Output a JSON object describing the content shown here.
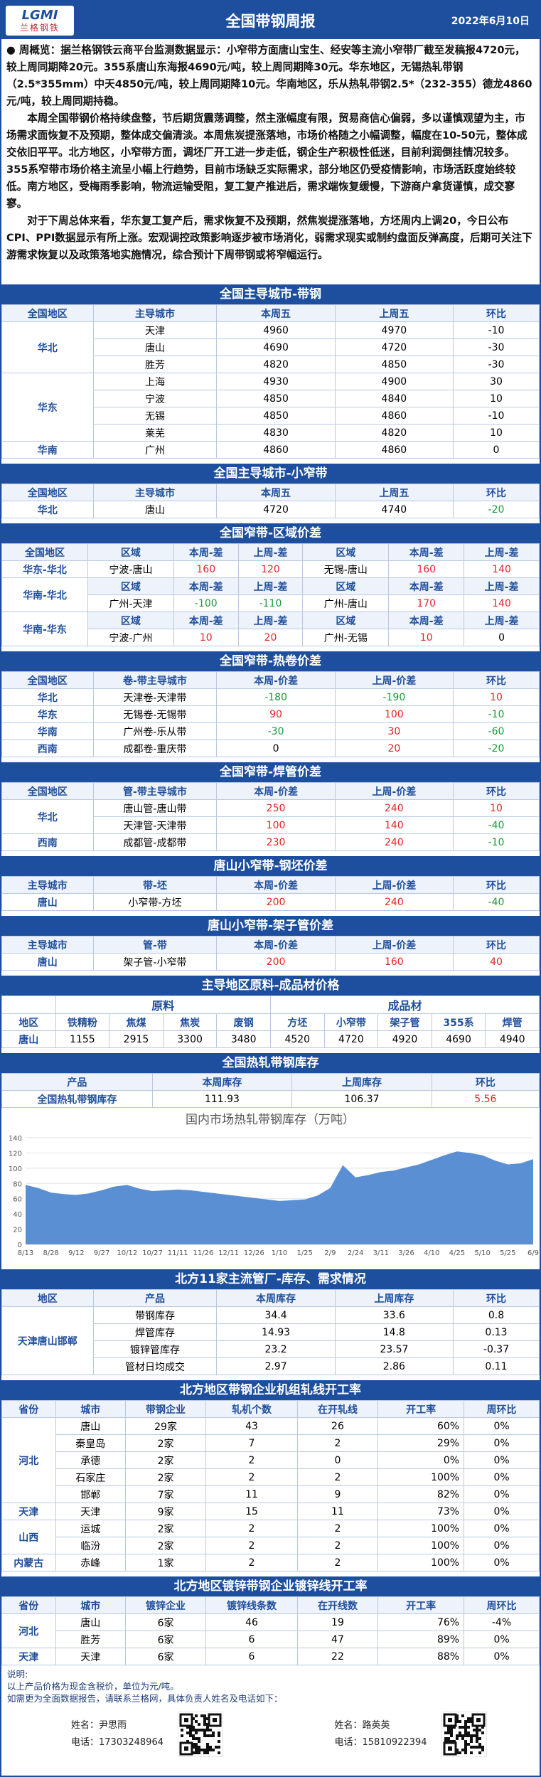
{
  "header": {
    "logo": "LGMI",
    "logo_sub": "兰格钢铁",
    "title": "全国带钢周报",
    "date": "2022年6月10日"
  },
  "summary": {
    "paragraphs": [
      "● 周概览：据兰格钢铁云商平台监测数据显示：小窄带方面唐山宝生、经安等主流小窄带厂截至发稿报4720元，较上周同期降20元。355系唐山东海报4690元/吨，较上周同期降30元。华东地区，无锡热轧带钢（2.5*355mm）中天4850元/吨，较上周同期降10元。华南地区，乐从热轧带钢2.5*（232-355）德龙4860元/吨，较上周同期持稳。",
      "本周全国带钢价格持续盘整，节后期货震荡调整，然主涨幅度有限，贸易商信心偏弱，多以谨慎观望为主，市场需求面恢复不及预期，整体成交偏清淡。本周焦炭提涨落地，市场价格随之小幅调整，幅度在10-50元，整体成交依旧平平。北方地区，小窄带方面，调坯厂开工进一步走低，钢企生产积极性低迷，目前利润倒挂情况较多。355系窄带市场价格主流呈小幅上行趋势，目前市场缺乏实际需求，部分地区仍受疫情影响，市场活跃度始终较低。南方地区，受梅雨季影响，物流运输受阻，复工复产推进后，需求端恢复缓慢，下游商户拿货谨慎，成交寥寥。",
      "对于下周总体来看，华东复工复产后，需求恢复不及预期，然焦炭提涨落地，方坯周内上调20，今日公布CPI、PPI数据显示有所上涨。宏观调控政策影响逐步被市场消化，弱需求现实或制约盘面反弹高度，后期可关注下游需求恢复以及政策落地实施情况，综合预计下周带钢或将窄幅运行。"
    ]
  },
  "sections": [
    {
      "type": "grouped",
      "title": "全国主导城市-带钢",
      "columns": [
        "全国地区",
        "主导城市",
        "本周五",
        "上周五",
        "环比"
      ],
      "groups": [
        {
          "label": "华北",
          "rows": [
            [
              "天津",
              4960,
              4970,
              -10
            ],
            [
              "唐山",
              4690,
              4720,
              -30
            ],
            [
              "胜芳",
              4820,
              4850,
              -30
            ]
          ]
        },
        {
          "label": "华东",
          "rows": [
            [
              "上海",
              4930,
              4900,
              30
            ],
            [
              "宁波",
              4850,
              4840,
              10
            ],
            [
              "无锡",
              4850,
              4860,
              -10
            ],
            [
              "莱芜",
              4830,
              4820,
              10
            ]
          ]
        },
        {
          "label": "华南",
          "rows": [
            [
              "广州",
              4860,
              4860,
              0
            ]
          ]
        }
      ]
    },
    {
      "type": "grouped",
      "title": "全国主导城市-小窄带",
      "columns": [
        "全国地区",
        "主导城市",
        "本周五",
        "上周五",
        "环比"
      ],
      "groups": [
        {
          "label": "华北",
          "rows": [
            [
              "唐山",
              4720,
              4740,
              -20
            ]
          ]
        }
      ]
    },
    {
      "type": "spread",
      "title": "全国窄带-区域价差",
      "columns": [
        "全国地区"
      ],
      "subcolumns": [
        "区域",
        "本周-差",
        "上周-差",
        "区域",
        "本周-差",
        "上周-差"
      ],
      "groups": [
        {
          "label": "华东-华北",
          "rows": [
            [
              "宁波-唐山",
              160,
              120,
              "无锡-唐山",
              160,
              140
            ]
          ]
        },
        {
          "label": "华南-华北",
          "rows": [
            [
              "广州-天津",
              -100,
              -110,
              "广州-唐山",
              170,
              140
            ]
          ]
        },
        {
          "label": "华南-华东",
          "rows": [
            [
              "宁波-广州",
              10,
              20,
              "广州-无锡",
              10,
              0
            ]
          ]
        }
      ]
    },
    {
      "type": "grouped",
      "title": "全国窄带-热卷价差",
      "columns": [
        "全国地区",
        "卷-带主导城市",
        "本周-价差",
        "上周-价差",
        "环比"
      ],
      "groups": [
        {
          "label": "华北",
          "rows": [
            [
              "天津卷-天津带",
              -180,
              -190,
              10
            ]
          ]
        },
        {
          "label": "华东",
          "rows": [
            [
              "无锡卷-无锡带",
              90,
              100,
              -10
            ]
          ]
        },
        {
          "label": "华南",
          "rows": [
            [
              "广州卷-乐从带",
              -30,
              30,
              -60
            ]
          ]
        },
        {
          "label": "西南",
          "rows": [
            [
              "成都卷-重庆带",
              0,
              20,
              -20
            ]
          ]
        }
      ]
    },
    {
      "type": "grouped",
      "title": "全国窄带-焊管价差",
      "columns": [
        "全国地区",
        "管-带主导城市",
        "本周-价差",
        "上周-价差",
        "环比"
      ],
      "groups": [
        {
          "label": "华北",
          "rows": [
            [
              "唐山管-唐山带",
              250,
              240,
              10
            ],
            [
              "天津管-天津带",
              100,
              140,
              -40
            ]
          ]
        },
        {
          "label": "西南",
          "rows": [
            [
              "成都管-成都带",
              230,
              240,
              -10
            ]
          ]
        }
      ]
    },
    {
      "type": "grouped",
      "title": "唐山小窄带-钢坯价差",
      "columns": [
        "主导城市",
        "带-坯",
        "本周-价差",
        "上周-价差",
        "环比"
      ],
      "groups": [
        {
          "label": "唐山",
          "rows": [
            [
              "小窄带-方坯",
              200,
              240,
              -40
            ]
          ]
        }
      ]
    },
    {
      "type": "grouped",
      "title": "唐山小窄带-架子管价差",
      "columns": [
        "主导城市",
        "管-带",
        "本周-价差",
        "上周-价差",
        "环比"
      ],
      "groups": [
        {
          "label": "唐山",
          "rows": [
            [
              "架子管-小窄带",
              200,
              160,
              40
            ]
          ]
        }
      ]
    },
    {
      "type": "materials",
      "title": "主导地区原料-成品材价格",
      "group_headers": [
        "原料",
        "成品材"
      ],
      "columns": [
        "地区",
        "铁精粉",
        "焦煤",
        "焦炭",
        "废钢",
        "方坯",
        "小窄带",
        "架子管",
        "355系",
        "焊管"
      ],
      "rows": [
        [
          "唐山",
          1155,
          2915,
          3300,
          3480,
          4520,
          4720,
          4920,
          4690,
          4940
        ]
      ]
    },
    {
      "type": "inventory",
      "title": "全国热轧带钢库存",
      "columns": [
        "产品",
        "本周库存",
        "上周库存",
        "环比"
      ],
      "rows": [
        [
          "全国热轧带钢库存",
          111.93,
          106.37,
          5.56
        ]
      ],
      "chart": {
        "type": "area",
        "title": "国内市场热轧带钢库存（万吨）",
        "color": "#5b8fd3",
        "grid": true,
        "categories": [
          "8/13",
          null,
          "8/28",
          null,
          "9/12",
          null,
          "9/27",
          null,
          "10/12",
          null,
          "10/27",
          null,
          "11/11",
          null,
          "11/26",
          null,
          "12/11",
          null,
          "12/26",
          null,
          "1/10",
          null,
          "1/25",
          null,
          "2/9",
          null,
          "2/24",
          null,
          "3/11",
          null,
          "3/26",
          null,
          "4/10",
          null,
          "4/25",
          null,
          "5/10",
          null,
          "5/25",
          null,
          "6/9"
        ],
        "values": [
          78,
          74,
          68,
          66,
          65,
          67,
          71,
          76,
          78,
          73,
          70,
          71,
          72,
          71,
          69,
          67,
          65,
          63,
          61,
          59,
          57,
          58,
          59,
          64,
          74,
          104,
          88,
          91,
          95,
          97,
          101,
          105,
          111,
          117,
          122,
          120,
          117,
          110,
          105,
          106.37,
          111.93
        ],
        "ylim": [
          0,
          140
        ],
        "yticks": [
          0,
          20,
          40,
          60,
          80,
          100,
          120,
          140
        ]
      }
    },
    {
      "type": "grouped",
      "title": "北方11家主流管厂-库存、需求情况",
      "columns": [
        "地区",
        "产品",
        "本周库存",
        "上周库存",
        "环比"
      ],
      "groups": [
        {
          "label": "天津唐山邯郸",
          "rows": [
            [
              "带钢库存",
              34.4,
              33.6,
              0.8
            ],
            [
              "焊管库存",
              14.93,
              14.8,
              0.13
            ],
            [
              "镀锌管库存",
              23.2,
              23.57,
              -0.37
            ],
            [
              "管材日均成交",
              2.97,
              2.86,
              0.11
            ]
          ]
        }
      ]
    },
    {
      "type": "grouped",
      "title": "北方地区带钢企业机组轧线开工率",
      "columns": [
        "省份",
        "城市",
        "带钢企业",
        "轧机个数",
        "在开轧线",
        "开工率",
        "周环比"
      ],
      "groups": [
        {
          "label": "河北",
          "rows": [
            [
              "唐山",
              "29家",
              43,
              26,
              {
                "value": 60,
                "label": "60%"
              },
              {
                "value": 0,
                "label": "0%"
              }
            ],
            [
              "秦皇岛",
              "2家",
              7,
              2,
              {
                "value": 29,
                "label": "29%"
              },
              {
                "value": 0,
                "label": "0%"
              }
            ],
            [
              "承德",
              "2家",
              2,
              0,
              {
                "value": 0,
                "label": "0%"
              },
              {
                "value": 0,
                "label": "0%"
              }
            ],
            [
              "石家庄",
              "2家",
              2,
              2,
              {
                "value": 100,
                "label": "100%"
              },
              {
                "value": 0,
                "label": "0%"
              }
            ],
            [
              "邯郸",
              "7家",
              11,
              9,
              {
                "value": 82,
                "label": "82%"
              },
              {
                "value": 0,
                "label": "0%"
              }
            ]
          ]
        },
        {
          "label": "天津",
          "rows": [
            [
              "天津",
              "9家",
              15,
              11,
              {
                "value": 73,
                "label": "73%"
              },
              {
                "value": 0,
                "label": "0%"
              }
            ]
          ]
        },
        {
          "label": "山西",
          "rows": [
            [
              "运城",
              "2家",
              2,
              2,
              {
                "value": 100,
                "label": "100%"
              },
              {
                "value": 0,
                "label": "0%"
              }
            ],
            [
              "临汾",
              "2家",
              2,
              2,
              {
                "value": 100,
                "label": "100%"
              },
              {
                "value": 0,
                "label": "0%"
              }
            ]
          ]
        },
        {
          "label": "内蒙古",
          "rows": [
            [
              "赤峰",
              "1家",
              2,
              2,
              {
                "value": 100,
                "label": "100%"
              },
              {
                "value": 0,
                "label": "0%"
              }
            ]
          ]
        }
      ]
    },
    {
      "type": "grouped",
      "title": "北方地区镀锌带钢企业镀锌线开工率",
      "columns": [
        "省份",
        "城市",
        "镀锌企业",
        "镀锌线条数",
        "在开线数",
        "开工率",
        "周环比"
      ],
      "groups": [
        {
          "label": "河北",
          "rows": [
            [
              "唐山",
              "6家",
              46,
              19,
              {
                "value": 76,
                "label": "76%"
              },
              {
                "value": -4,
                "label": "-4%"
              }
            ],
            [
              "胜芳",
              "6家",
              6,
              47,
              {
                "value": 89,
                "label": "89%"
              },
              {
                "value": 0,
                "label": "0%"
              }
            ]
          ]
        },
        {
          "label": "天津",
          "rows": [
            [
              "天津",
              "6家",
              6,
              22,
              {
                "value": 88,
                "label": "88%"
              },
              {
                "value": 0,
                "label": "0%"
              }
            ]
          ]
        }
      ]
    }
  ],
  "footer": {
    "notes": [
      "说明:",
      "以上产品价格为现金含税价，单位为元/吨。",
      "如需更为全面数据报告，请联系兰格网，具体负责人姓名及电话如下："
    ],
    "contacts": [
      {
        "name": "姓名：尹思雨",
        "phone": "电话：17303248964"
      },
      {
        "name": "姓名：路英英",
        "phone": "电话：15810922394"
      }
    ]
  }
}
